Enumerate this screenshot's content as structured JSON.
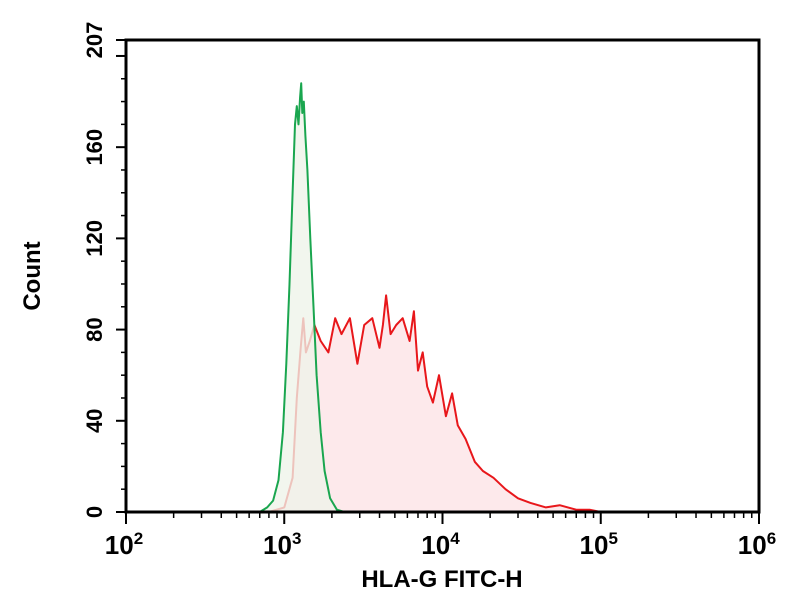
{
  "chart_data": {
    "type": "area",
    "title": "",
    "xlabel": "HLA-G FITC-H",
    "ylabel": "Count",
    "xscale": "log",
    "xlim": [
      100,
      1000000
    ],
    "ylim": [
      0,
      207
    ],
    "grid": false,
    "x_ticks": [
      {
        "base": "10",
        "exp": "2",
        "value": 100
      },
      {
        "base": "10",
        "exp": "3",
        "value": 1000
      },
      {
        "base": "10",
        "exp": "4",
        "value": 10000
      },
      {
        "base": "10",
        "exp": "5",
        "value": 100000
      },
      {
        "base": "10",
        "exp": "6",
        "value": 1000000
      }
    ],
    "y_ticks": [
      {
        "label": "0",
        "value": 0
      },
      {
        "label": "40",
        "value": 40
      },
      {
        "label": "80",
        "value": 80
      },
      {
        "label": "120",
        "value": 120
      },
      {
        "label": "160",
        "value": 160
      },
      {
        "label": "207",
        "value": 207
      }
    ],
    "series": [
      {
        "color": "#e8171b",
        "fill": "#fce3e5",
        "x": [
          800,
          1000,
          1130,
          1200,
          1270,
          1320,
          1370,
          1450,
          1550,
          1700,
          1900,
          2100,
          2300,
          2600,
          2900,
          3200,
          3600,
          4000,
          4200,
          4400,
          4700,
          5100,
          5600,
          6200,
          6600,
          7000,
          7500,
          8000,
          8700,
          9500,
          10500,
          11500,
          12500,
          14000,
          16000,
          18000,
          21000,
          25000,
          30000,
          36000,
          45000,
          55000,
          70000,
          85000,
          100000
        ],
        "y": [
          0,
          2,
          15,
          50,
          72,
          85,
          70,
          75,
          82,
          75,
          70,
          85,
          78,
          85,
          65,
          82,
          85,
          72,
          82,
          95,
          78,
          82,
          85,
          75,
          88,
          62,
          70,
          55,
          48,
          60,
          42,
          52,
          38,
          32,
          22,
          18,
          15,
          10,
          6,
          4,
          2,
          3,
          1,
          1,
          0
        ]
      },
      {
        "color": "#1aa64f",
        "fill": "#eef3e9",
        "x": [
          700,
          780,
          850,
          920,
          980,
          1030,
          1080,
          1130,
          1170,
          1200,
          1230,
          1260,
          1280,
          1300,
          1330,
          1360,
          1400,
          1460,
          1530,
          1600,
          1700,
          1800,
          1950,
          2150,
          2400
        ],
        "y": [
          0,
          2,
          5,
          14,
          35,
          65,
          100,
          140,
          170,
          178,
          170,
          182,
          188,
          175,
          180,
          165,
          150,
          120,
          90,
          60,
          35,
          18,
          6,
          1,
          0
        ]
      }
    ]
  }
}
